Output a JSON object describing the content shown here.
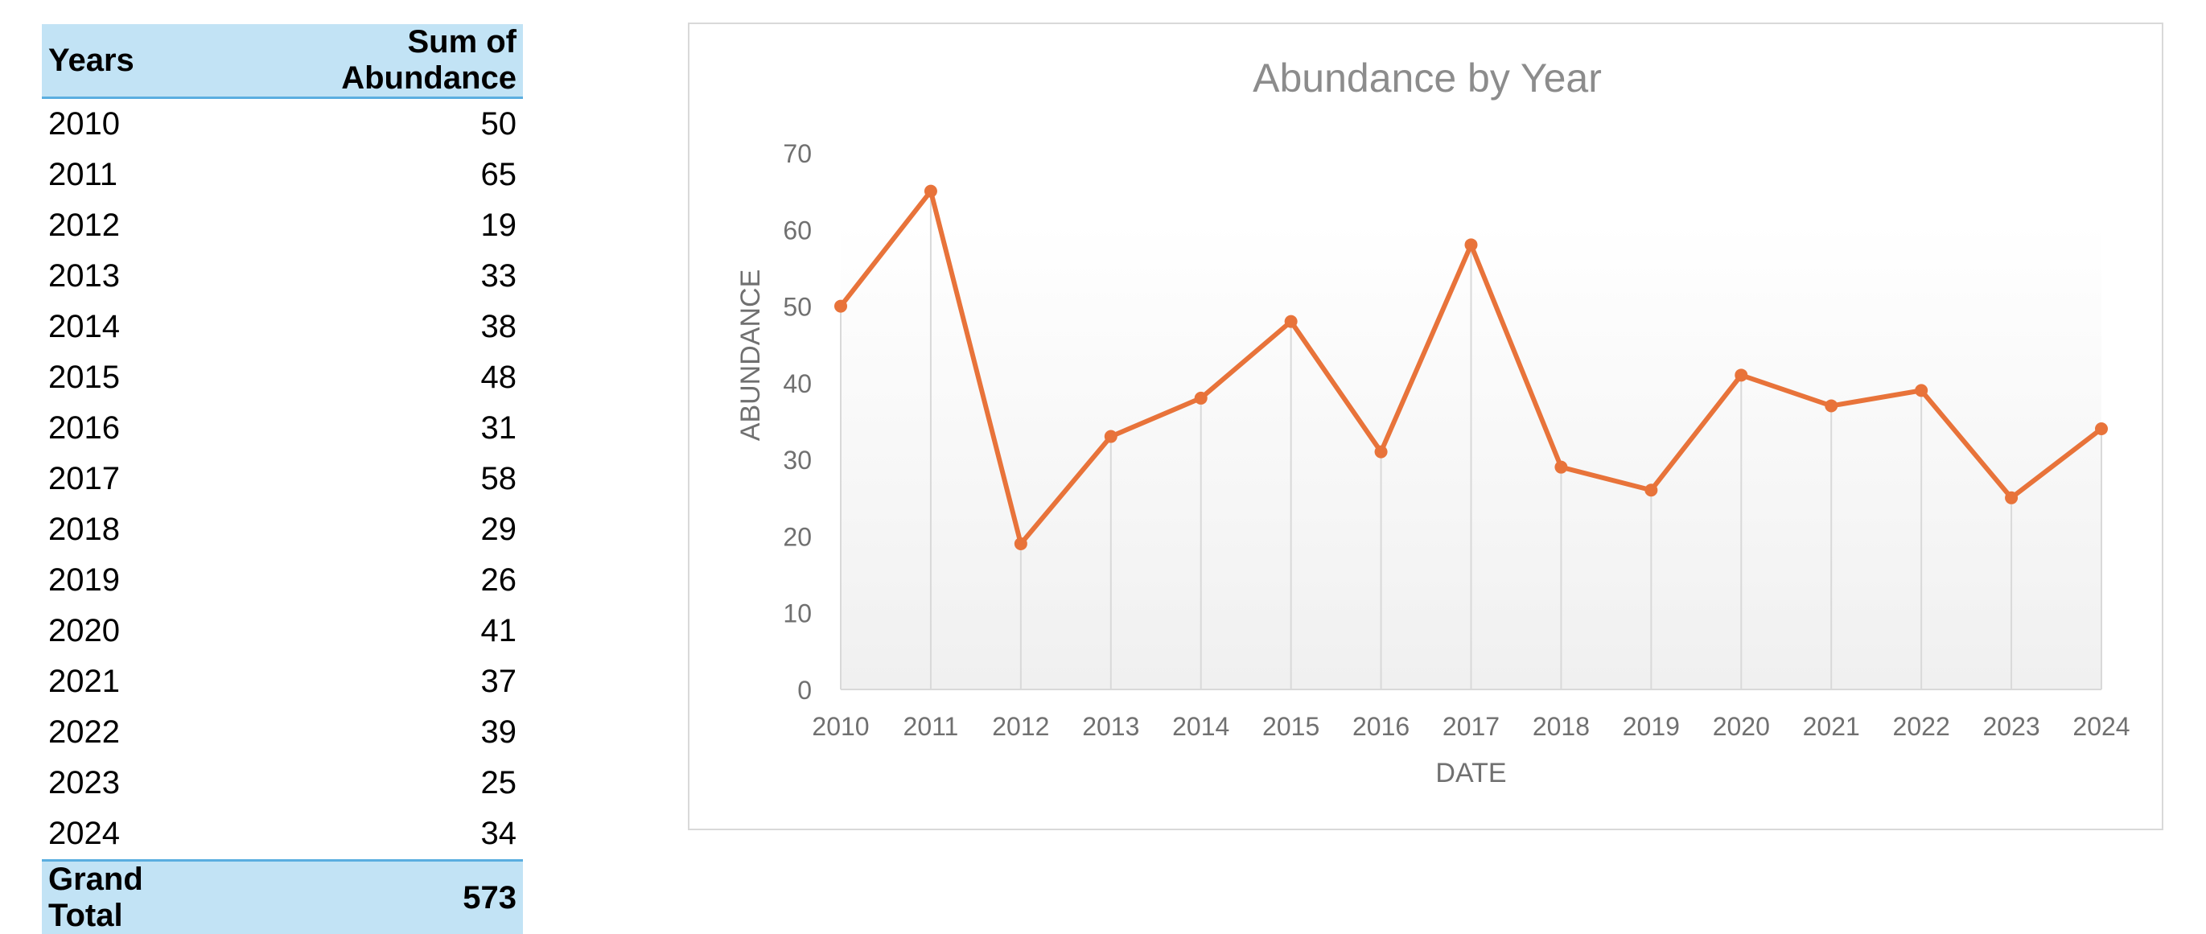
{
  "table": {
    "header_years": "Years",
    "header_sum": "Sum of Abundance",
    "rows": [
      {
        "year": "2010",
        "value": "50"
      },
      {
        "year": "2011",
        "value": "65"
      },
      {
        "year": "2012",
        "value": "19"
      },
      {
        "year": "2013",
        "value": "33"
      },
      {
        "year": "2014",
        "value": "38"
      },
      {
        "year": "2015",
        "value": "48"
      },
      {
        "year": "2016",
        "value": "31"
      },
      {
        "year": "2017",
        "value": "58"
      },
      {
        "year": "2018",
        "value": "29"
      },
      {
        "year": "2019",
        "value": "26"
      },
      {
        "year": "2020",
        "value": "41"
      },
      {
        "year": "2021",
        "value": "37"
      },
      {
        "year": "2022",
        "value": "39"
      },
      {
        "year": "2023",
        "value": "25"
      },
      {
        "year": "2024",
        "value": "34"
      }
    ],
    "grand_total_label": "Grand Total",
    "grand_total_value": "573",
    "header_color": "#c2e3f5",
    "border_color": "#5aaee0"
  },
  "chart_data": {
    "type": "line",
    "title": "Abundance by Year",
    "xlabel": "DATE",
    "ylabel": "ABUNDANCE",
    "categories": [
      "2010",
      "2011",
      "2012",
      "2013",
      "2014",
      "2015",
      "2016",
      "2017",
      "2018",
      "2019",
      "2020",
      "2021",
      "2022",
      "2023",
      "2024"
    ],
    "series": [
      {
        "values": [
          50,
          65,
          19,
          33,
          38,
          48,
          31,
          58,
          29,
          26,
          41,
          37,
          39,
          25,
          34
        ],
        "color": "#e8733a"
      }
    ],
    "ylim": [
      0,
      70
    ],
    "yticks": [
      "0",
      "10",
      "20",
      "30",
      "40",
      "50",
      "60",
      "70"
    ],
    "grid": "vertical drop lines",
    "legend": "none",
    "plot_background": "gradient white to light gray"
  }
}
